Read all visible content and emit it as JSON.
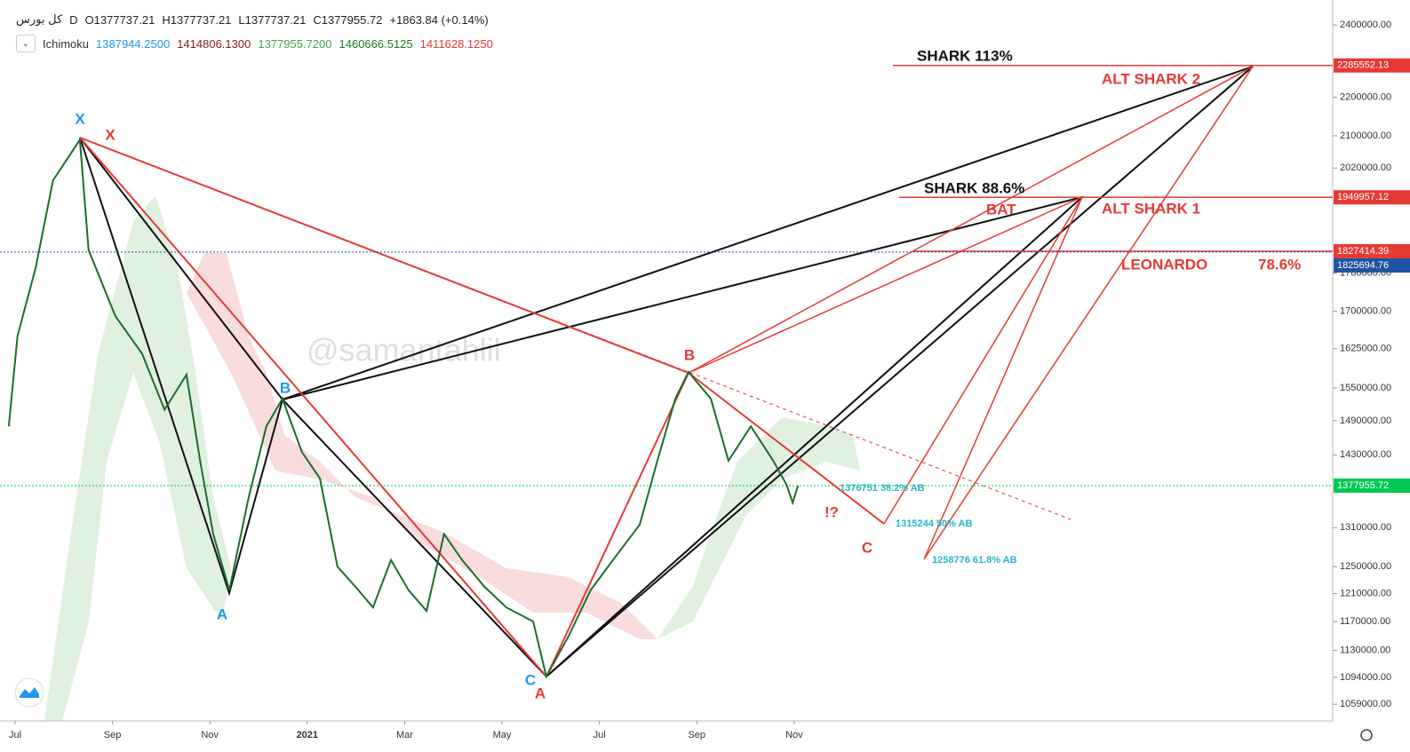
{
  "header": {
    "symbol": "کل بورس",
    "interval": "D",
    "open": "O1377737.21",
    "high": "H1377737.21",
    "low": "L1377737.21",
    "close": "C1377955.72",
    "change": "+1863.84 (+0.14%)",
    "indicator": "Ichimoku",
    "indicator_values": [
      "1387944.2500",
      "1414806.1300",
      "1377955.7200",
      "1460666.5125",
      "1411628.1250"
    ],
    "indicator_colors": [
      "#2196f3",
      "#8b1a1a",
      "#43a047",
      "#1b7a1b",
      "#e53935"
    ]
  },
  "annotations": [
    "X",
    "X",
    "A",
    "B",
    "C",
    "A",
    "B",
    "C",
    "SHARK 113%",
    "ALT SHARK 2",
    "SHARK 88.6%",
    "BAT",
    "ALT SHARK 1",
    "LEONARDO",
    "78.6%",
    "!?",
    "1376751  38.2%  AB",
    "1315244  50%  AB",
    "1258776  61.8%  AB",
    "@samantahlil"
  ],
  "chart_data": {
    "type": "line",
    "log": true,
    "x": [
      -0.13,
      0.05,
      0.42,
      0.78,
      1.33,
      1.51,
      2.06,
      2.61,
      3.07,
      3.52,
      3.8,
      4.07,
      4.4,
      4.8,
      5.16,
      5.49,
      5.89,
      6.26,
      6.62,
      6.99,
      7.35,
      7.72,
      8.08,
      8.45,
      8.81,
      9.18,
      9.64,
      10.09,
      10.64,
      10.91,
      11.37,
      11.82,
      12.28,
      12.83,
      13.19,
      13.56,
      13.83,
      14.29,
      14.65,
      15.11,
      15.57,
      15.84,
      15.97,
      16.08
    ],
    "series": [
      {
        "color": "#1b6e2a",
        "values": [
          1480000,
          1650000,
          1790000,
          1990000,
          2090000,
          1830000,
          1690000,
          1615000,
          1510000,
          1575000,
          1420000,
          1300000,
          1215000,
          1360000,
          1480000,
          1530000,
          1435000,
          1390000,
          1250000,
          1220000,
          1190000,
          1260000,
          1215000,
          1185000,
          1300000,
          1260000,
          1220000,
          1190000,
          1170000,
          1095000,
          1150000,
          1215000,
          1260000,
          1315000,
          1420000,
          1530000,
          1580000,
          1530000,
          1420000,
          1480000,
          1420000,
          1380000,
          1350000,
          1378000
        ]
      }
    ],
    "xlim": [
      -0.31,
      27.06
    ],
    "xticks": [
      {
        "value": 0,
        "label": "Jul"
      },
      {
        "value": 2,
        "label": "Sep"
      },
      {
        "value": 4,
        "label": "Nov"
      },
      {
        "value": 6,
        "label": "2021"
      },
      {
        "value": 8,
        "label": "Mar"
      },
      {
        "value": 10,
        "label": "May"
      },
      {
        "value": 12,
        "label": "Jul"
      },
      {
        "value": 14,
        "label": "Sep"
      },
      {
        "value": 16,
        "label": "Nov"
      }
    ],
    "ylim": [
      1038000,
      2473000
    ],
    "yticks": [
      {
        "value": 2400000,
        "label": "2400000.00"
      },
      {
        "value": 2200000,
        "label": "2200000.00"
      },
      {
        "value": 2100000,
        "label": "2100000.00"
      },
      {
        "value": 2020000,
        "label": "2020000.00"
      },
      {
        "value": 1780000,
        "label": "1780000.00"
      },
      {
        "value": 1700000,
        "label": "1700000.00"
      },
      {
        "value": 1625000,
        "label": "1625000.00"
      },
      {
        "value": 1550000,
        "label": "1550000.00"
      },
      {
        "value": 1490000,
        "label": "1490000.00"
      },
      {
        "value": 1430000,
        "label": "1430000.00"
      },
      {
        "value": 1310000,
        "label": "1310000.00"
      },
      {
        "value": 1250000,
        "label": "1250000.00"
      },
      {
        "value": 1210000,
        "label": "1210000.00"
      },
      {
        "value": 1170000,
        "label": "1170000.00"
      },
      {
        "value": 1130000,
        "label": "1130000.00"
      },
      {
        "value": 1094000,
        "label": "1094000.00"
      },
      {
        "value": 1059000,
        "label": "1059000.00"
      }
    ],
    "price_lines": [
      {
        "value": 2285552.13,
        "color": "#e53935"
      },
      {
        "value": 1949957.12,
        "color": "#e53935"
      },
      {
        "value": 1827414.39,
        "color": "#e53935"
      },
      {
        "value": 1825694.76,
        "color": "#1e53a0"
      },
      {
        "value": 1377955.72,
        "color": "#00c853"
      }
    ]
  }
}
